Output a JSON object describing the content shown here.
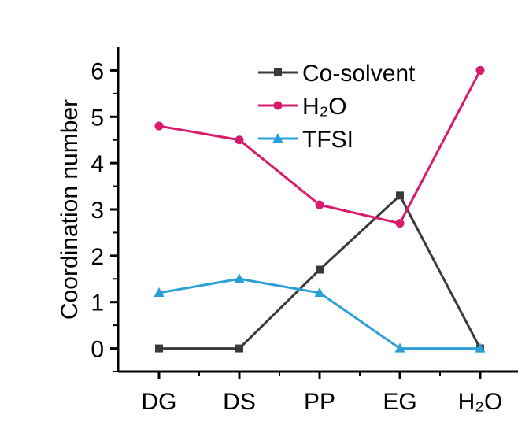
{
  "chart_data": {
    "type": "line",
    "title": "",
    "xlabel": "",
    "ylabel": "Coordination number",
    "categories": [
      "DG",
      "DS",
      "PP",
      "EG",
      "H₂O"
    ],
    "ylim": [
      -0.5,
      6.5
    ],
    "yticks": [
      0,
      1,
      2,
      3,
      4,
      5,
      6
    ],
    "grid": false,
    "legend_position": "top-right",
    "series": [
      {
        "name": "Co-solvent",
        "color": "#3a3a3a",
        "marker": "square",
        "values": [
          0,
          0,
          1.7,
          3.3,
          0
        ]
      },
      {
        "name": "H₂O",
        "color": "#d81b6a",
        "marker": "circle",
        "values": [
          4.8,
          4.5,
          3.1,
          2.7,
          6
        ]
      },
      {
        "name": "TFSI",
        "color": "#2ba0d8",
        "marker": "triangle",
        "values": [
          1.2,
          1.5,
          1.2,
          0,
          0
        ]
      }
    ]
  }
}
